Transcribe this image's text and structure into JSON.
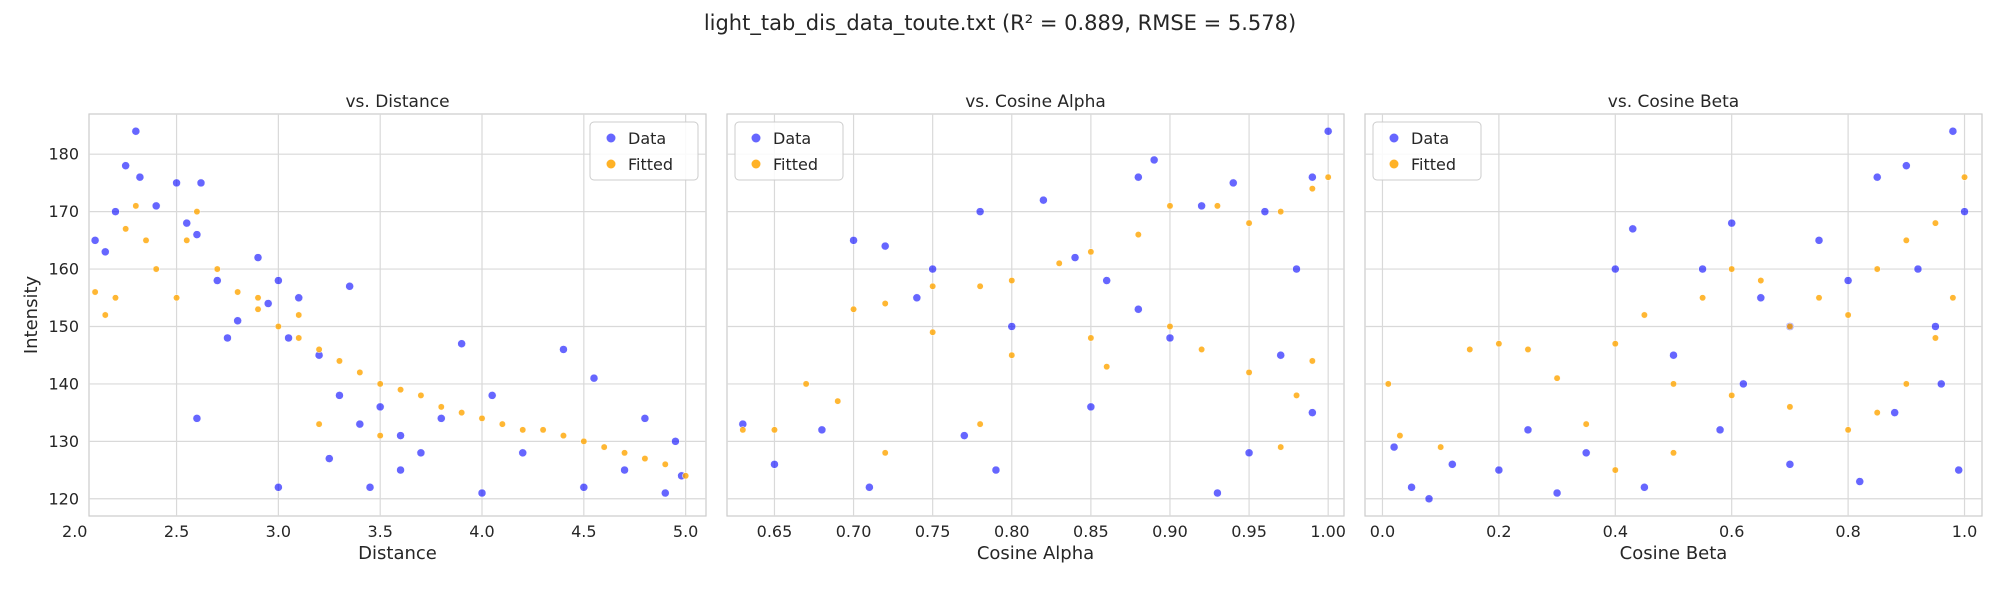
{
  "figure": {
    "title": "light_tab_dis_data_toute.txt (R² = 0.889, RMSE = 5.578)"
  },
  "colors": {
    "data": "#0000ff",
    "fitted": "#ffa500",
    "grid": "#d9d9d9",
    "spine": "#cccccc"
  },
  "chart_data": [
    {
      "type": "scatter",
      "title": "vs. Distance",
      "xlabel": "Distance",
      "ylabel": "Intensity",
      "xlim": [
        2.07,
        5.1
      ],
      "ylim": [
        117,
        187
      ],
      "xticks": [
        2.0,
        2.5,
        3.0,
        3.5,
        4.0,
        4.5,
        5.0
      ],
      "xtick_labels": [
        "2.0",
        "2.5",
        "3.0",
        "3.5",
        "4.0",
        "4.5",
        "5.0"
      ],
      "yticks": [
        120,
        130,
        140,
        150,
        160,
        170,
        180
      ],
      "ytick_labels": [
        "120",
        "130",
        "140",
        "150",
        "160",
        "170",
        "180"
      ],
      "grid": true,
      "legend": "upper right",
      "series": [
        {
          "name": "Data",
          "points": [
            [
              2.1,
              165
            ],
            [
              2.15,
              163
            ],
            [
              2.2,
              170
            ],
            [
              2.25,
              178
            ],
            [
              2.3,
              184
            ],
            [
              2.32,
              176
            ],
            [
              2.4,
              171
            ],
            [
              2.5,
              175
            ],
            [
              2.55,
              168
            ],
            [
              2.6,
              166
            ],
            [
              2.62,
              175
            ],
            [
              2.7,
              158
            ],
            [
              2.8,
              151
            ],
            [
              2.9,
              162
            ],
            [
              2.95,
              154
            ],
            [
              3.0,
              158
            ],
            [
              3.05,
              148
            ],
            [
              3.1,
              155
            ],
            [
              3.2,
              145
            ],
            [
              3.3,
              138
            ],
            [
              3.4,
              133
            ],
            [
              3.5,
              136
            ],
            [
              3.6,
              131
            ],
            [
              3.7,
              128
            ],
            [
              3.8,
              134
            ],
            [
              3.9,
              147
            ],
            [
              4.0,
              121
            ],
            [
              4.05,
              138
            ],
            [
              4.2,
              128
            ],
            [
              4.4,
              146
            ],
            [
              4.5,
              122
            ],
            [
              4.55,
              141
            ],
            [
              4.7,
              125
            ],
            [
              4.8,
              134
            ],
            [
              4.9,
              121
            ],
            [
              4.95,
              130
            ],
            [
              4.98,
              124
            ],
            [
              3.0,
              122
            ],
            [
              3.25,
              127
            ],
            [
              2.6,
              134
            ],
            [
              3.35,
              157
            ],
            [
              3.6,
              125
            ],
            [
              2.75,
              148
            ],
            [
              3.45,
              122
            ]
          ]
        },
        {
          "name": "Fitted",
          "points": [
            [
              2.1,
              156
            ],
            [
              2.15,
              152
            ],
            [
              2.2,
              155
            ],
            [
              2.25,
              167
            ],
            [
              2.3,
              171
            ],
            [
              2.35,
              165
            ],
            [
              2.4,
              160
            ],
            [
              2.5,
              155
            ],
            [
              2.55,
              165
            ],
            [
              2.6,
              170
            ],
            [
              2.7,
              160
            ],
            [
              2.8,
              156
            ],
            [
              2.9,
              153
            ],
            [
              3.0,
              150
            ],
            [
              3.1,
              148
            ],
            [
              3.2,
              146
            ],
            [
              3.3,
              144
            ],
            [
              3.4,
              142
            ],
            [
              3.5,
              140
            ],
            [
              3.6,
              139
            ],
            [
              3.7,
              138
            ],
            [
              3.8,
              136
            ],
            [
              3.9,
              135
            ],
            [
              4.0,
              134
            ],
            [
              4.1,
              133
            ],
            [
              4.2,
              132
            ],
            [
              4.3,
              132
            ],
            [
              4.4,
              131
            ],
            [
              4.5,
              130
            ],
            [
              4.6,
              129
            ],
            [
              4.7,
              128
            ],
            [
              4.8,
              127
            ],
            [
              4.9,
              126
            ],
            [
              5.0,
              124
            ],
            [
              3.2,
              133
            ],
            [
              3.5,
              131
            ],
            [
              2.9,
              155
            ],
            [
              3.1,
              152
            ]
          ]
        }
      ]
    },
    {
      "type": "scatter",
      "title": "vs. Cosine Alpha",
      "xlabel": "Cosine Alpha",
      "ylabel": "",
      "xlim": [
        0.62,
        1.01
      ],
      "ylim": [
        117,
        187
      ],
      "xticks": [
        0.65,
        0.7,
        0.75,
        0.8,
        0.85,
        0.9,
        0.95,
        1.0
      ],
      "xtick_labels": [
        "0.65",
        "0.70",
        "0.75",
        "0.80",
        "0.85",
        "0.90",
        "0.95",
        "1.00"
      ],
      "grid": true,
      "legend": "upper left",
      "series": [
        {
          "name": "Data",
          "points": [
            [
              0.63,
              133
            ],
            [
              0.65,
              126
            ],
            [
              0.68,
              132
            ],
            [
              0.7,
              165
            ],
            [
              0.72,
              164
            ],
            [
              0.74,
              155
            ],
            [
              0.75,
              160
            ],
            [
              0.77,
              131
            ],
            [
              0.78,
              170
            ],
            [
              0.8,
              150
            ],
            [
              0.82,
              172
            ],
            [
              0.84,
              162
            ],
            [
              0.86,
              158
            ],
            [
              0.88,
              176
            ],
            [
              0.89,
              179
            ],
            [
              0.9,
              148
            ],
            [
              0.92,
              171
            ],
            [
              0.94,
              175
            ],
            [
              0.95,
              128
            ],
            [
              0.96,
              170
            ],
            [
              0.97,
              145
            ],
            [
              0.98,
              160
            ],
            [
              0.99,
              135
            ],
            [
              1.0,
              184
            ],
            [
              0.99,
              176
            ],
            [
              0.93,
              121
            ],
            [
              0.85,
              136
            ],
            [
              0.79,
              125
            ],
            [
              0.71,
              122
            ],
            [
              0.88,
              153
            ]
          ]
        },
        {
          "name": "Fitted",
          "points": [
            [
              0.63,
              132
            ],
            [
              0.65,
              132
            ],
            [
              0.67,
              140
            ],
            [
              0.69,
              137
            ],
            [
              0.7,
              153
            ],
            [
              0.72,
              154
            ],
            [
              0.75,
              157
            ],
            [
              0.78,
              157
            ],
            [
              0.8,
              158
            ],
            [
              0.83,
              161
            ],
            [
              0.85,
              163
            ],
            [
              0.88,
              166
            ],
            [
              0.9,
              171
            ],
            [
              0.93,
              171
            ],
            [
              0.95,
              168
            ],
            [
              0.97,
              170
            ],
            [
              0.99,
              174
            ],
            [
              1.0,
              176
            ],
            [
              0.75,
              149
            ],
            [
              0.8,
              145
            ],
            [
              0.85,
              148
            ],
            [
              0.9,
              150
            ],
            [
              0.95,
              142
            ],
            [
              0.98,
              138
            ],
            [
              0.72,
              128
            ],
            [
              0.78,
              133
            ],
            [
              0.86,
              143
            ],
            [
              0.92,
              146
            ],
            [
              0.97,
              129
            ],
            [
              0.99,
              144
            ]
          ]
        }
      ]
    },
    {
      "type": "scatter",
      "title": "vs. Cosine Beta",
      "xlabel": "Cosine Beta",
      "ylabel": "",
      "xlim": [
        -0.03,
        1.03
      ],
      "ylim": [
        117,
        187
      ],
      "xticks": [
        0.0,
        0.2,
        0.4,
        0.6,
        0.8,
        1.0
      ],
      "xtick_labels": [
        "0.0",
        "0.2",
        "0.4",
        "0.6",
        "0.8",
        "1.0"
      ],
      "grid": true,
      "legend": "upper left",
      "series": [
        {
          "name": "Data",
          "points": [
            [
              0.02,
              129
            ],
            [
              0.05,
              122
            ],
            [
              0.08,
              120
            ],
            [
              0.12,
              126
            ],
            [
              0.2,
              125
            ],
            [
              0.25,
              132
            ],
            [
              0.3,
              121
            ],
            [
              0.35,
              128
            ],
            [
              0.4,
              160
            ],
            [
              0.43,
              167
            ],
            [
              0.45,
              122
            ],
            [
              0.5,
              145
            ],
            [
              0.55,
              160
            ],
            [
              0.6,
              168
            ],
            [
              0.62,
              140
            ],
            [
              0.65,
              155
            ],
            [
              0.7,
              150
            ],
            [
              0.75,
              165
            ],
            [
              0.8,
              158
            ],
            [
              0.85,
              176
            ],
            [
              0.9,
              178
            ],
            [
              0.95,
              150
            ],
            [
              0.98,
              184
            ],
            [
              1.0,
              170
            ],
            [
              0.99,
              125
            ],
            [
              0.96,
              140
            ],
            [
              0.92,
              160
            ],
            [
              0.88,
              135
            ],
            [
              0.82,
              123
            ],
            [
              0.7,
              126
            ],
            [
              0.58,
              132
            ]
          ]
        },
        {
          "name": "Fitted",
          "points": [
            [
              0.01,
              140
            ],
            [
              0.03,
              131
            ],
            [
              0.1,
              129
            ],
            [
              0.15,
              146
            ],
            [
              0.2,
              147
            ],
            [
              0.25,
              146
            ],
            [
              0.3,
              141
            ],
            [
              0.35,
              133
            ],
            [
              0.4,
              147
            ],
            [
              0.45,
              152
            ],
            [
              0.5,
              140
            ],
            [
              0.55,
              155
            ],
            [
              0.6,
              160
            ],
            [
              0.65,
              158
            ],
            [
              0.7,
              150
            ],
            [
              0.75,
              155
            ],
            [
              0.8,
              152
            ],
            [
              0.85,
              160
            ],
            [
              0.9,
              165
            ],
            [
              0.95,
              168
            ],
            [
              1.0,
              176
            ],
            [
              0.98,
              155
            ],
            [
              0.95,
              148
            ],
            [
              0.9,
              140
            ],
            [
              0.85,
              135
            ],
            [
              0.8,
              132
            ],
            [
              0.7,
              136
            ],
            [
              0.6,
              138
            ],
            [
              0.5,
              128
            ],
            [
              0.4,
              125
            ]
          ]
        }
      ]
    }
  ]
}
